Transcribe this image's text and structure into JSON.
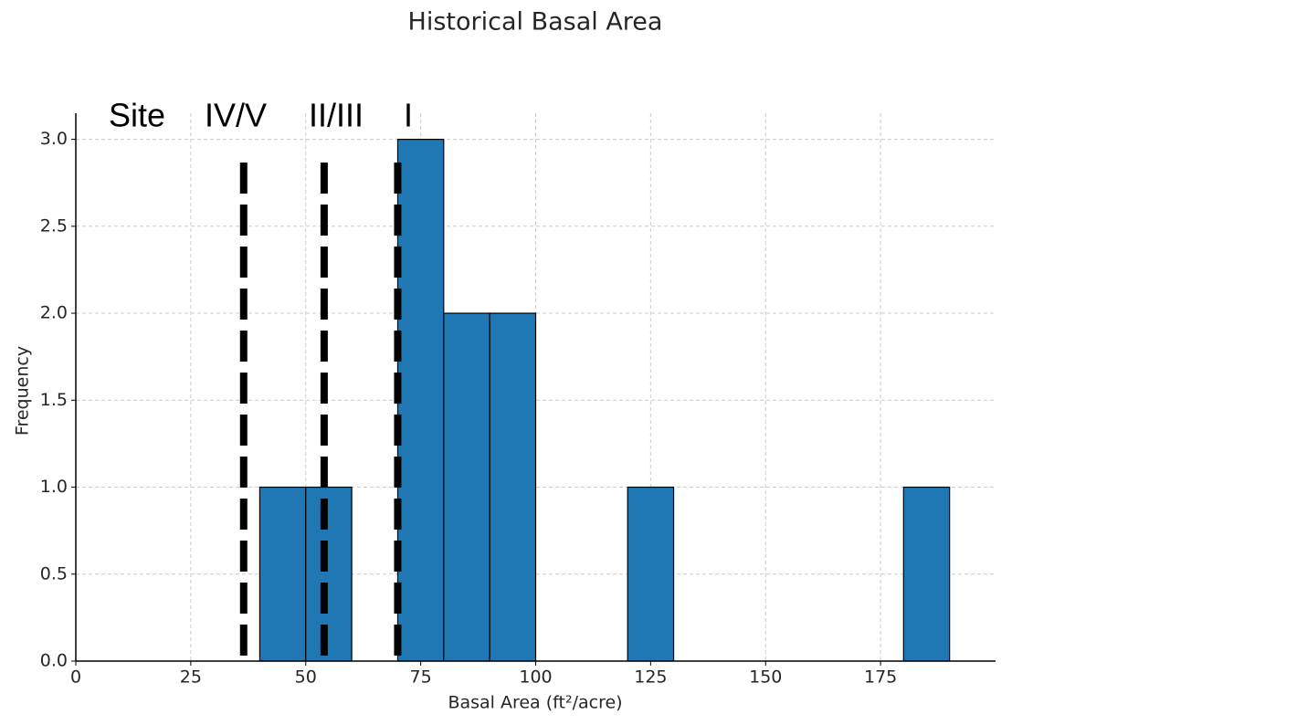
{
  "chart_data": {
    "type": "histogram",
    "title": "Historical Basal Area",
    "x_label": "Basal Area (ft²/acre)",
    "y_label": "Frequency",
    "bins": [
      40,
      50,
      60,
      70,
      80,
      90,
      100,
      110,
      120,
      130,
      140,
      150,
      160,
      170,
      180,
      190
    ],
    "counts": [
      1,
      1,
      0,
      3,
      2,
      2,
      0,
      0,
      1,
      0,
      0,
      0,
      0,
      0,
      1
    ],
    "color": "#1f77b4",
    "xlim": [
      0,
      200
    ],
    "ylim": [
      0,
      3.15
    ],
    "xticks": [
      0,
      25,
      50,
      75,
      100,
      125,
      150,
      175
    ],
    "yticks": [
      {
        "value": 0,
        "label": "0.0"
      },
      {
        "value": 0.5,
        "label": "0.5"
      },
      {
        "value": 1,
        "label": "1.0"
      },
      {
        "value": 1.5,
        "label": "1.5"
      },
      {
        "value": 2,
        "label": "2.0"
      },
      {
        "value": 2.5,
        "label": "2.5"
      },
      {
        "value": 3,
        "label": "3.0"
      }
    ],
    "grid": true,
    "reference_lines": [
      36.5,
      54,
      70
    ],
    "annotations": [
      "Site",
      "IV/V",
      "II/III",
      "I"
    ]
  }
}
